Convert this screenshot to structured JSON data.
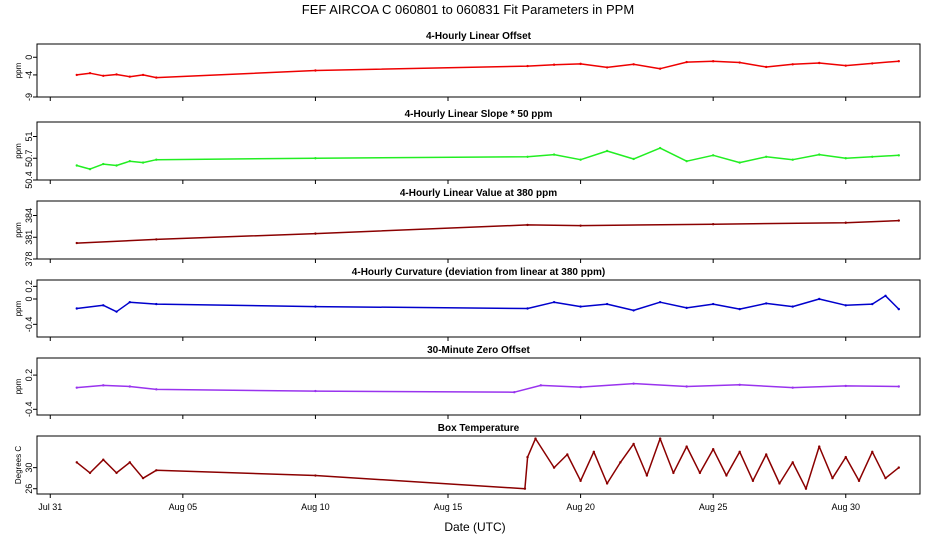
{
  "title": "FEF   AIRCOA C   060801 to 060831   Fit Parameters in PPM",
  "xlabel": "Date (UTC)",
  "x_ticks": [
    {
      "label": "Jul 31",
      "day": 0
    },
    {
      "label": "Aug 05",
      "day": 5
    },
    {
      "label": "Aug 10",
      "day": 10
    },
    {
      "label": "Aug 15",
      "day": 15
    },
    {
      "label": "Aug 20",
      "day": 20
    },
    {
      "label": "Aug 25",
      "day": 25
    },
    {
      "label": "Aug 30",
      "day": 30
    }
  ],
  "colors": {
    "red": "#ee0000",
    "green": "#22ee22",
    "darkred": "#8b0000",
    "blue": "#0000cc",
    "purple": "#9933ee"
  },
  "chart_data": [
    {
      "type": "line",
      "title": "4-Hourly Linear Offset",
      "ylabel": "ppm",
      "ylim": [
        -9,
        3
      ],
      "yticks": [
        -9,
        -4,
        0
      ],
      "color_key": "red",
      "x": [
        1.0,
        1.5,
        2.0,
        2.5,
        3.0,
        3.5,
        4.0,
        10.0,
        18.0,
        19.0,
        20.0,
        21.0,
        22.0,
        23.0,
        24.0,
        25.0,
        26.0,
        27.0,
        28.0,
        29.0,
        30.0,
        31.0,
        32.0
      ],
      "y": [
        -4.0,
        -3.6,
        -4.2,
        -3.9,
        -4.4,
        -4.0,
        -4.6,
        -3.0,
        -2.0,
        -1.7,
        -1.5,
        -2.3,
        -1.6,
        -2.6,
        -1.1,
        -0.9,
        -1.2,
        -2.2,
        -1.6,
        -1.3,
        -1.9,
        -1.4,
        -0.9
      ]
    },
    {
      "type": "line",
      "title": "4-Hourly Linear Slope * 50 ppm",
      "ylabel": "ppm",
      "ylim": [
        50.4,
        51.2
      ],
      "yticks": [
        50.4,
        50.7,
        51.0
      ],
      "color_key": "green",
      "x": [
        1.0,
        1.5,
        2.0,
        2.5,
        3.0,
        3.5,
        4.0,
        10.0,
        18.0,
        19.0,
        20.0,
        21.0,
        22.0,
        23.0,
        24.0,
        25.0,
        26.0,
        27.0,
        28.0,
        29.0,
        30.0,
        31.0,
        32.0
      ],
      "y": [
        50.6,
        50.55,
        50.62,
        50.6,
        50.66,
        50.64,
        50.68,
        50.7,
        50.72,
        50.75,
        50.68,
        50.8,
        50.69,
        50.84,
        50.66,
        50.74,
        50.64,
        50.72,
        50.68,
        50.75,
        50.7,
        50.72,
        50.74
      ]
    },
    {
      "type": "line",
      "title": "4-Hourly Linear Value at 380 ppm",
      "ylabel": "ppm",
      "ylim": [
        378,
        386
      ],
      "yticks": [
        378,
        381,
        384
      ],
      "color_key": "darkred",
      "x": [
        1.0,
        4.0,
        10.0,
        18.0,
        20.0,
        25.0,
        30.0,
        32.0
      ],
      "y": [
        380.2,
        380.7,
        381.5,
        382.7,
        382.6,
        382.8,
        383.0,
        383.3
      ]
    },
    {
      "type": "line",
      "title": "4-Hourly Curvature (deviation from linear at 380 ppm)",
      "ylabel": "ppm",
      "ylim": [
        -0.6,
        0.3
      ],
      "yticks": [
        -0.4,
        0.0,
        0.2
      ],
      "color_key": "blue",
      "x": [
        1.0,
        2.0,
        2.5,
        3.0,
        4.0,
        10.0,
        18.0,
        19.0,
        20.0,
        21.0,
        22.0,
        23.0,
        24.0,
        25.0,
        26.0,
        27.0,
        28.0,
        29.0,
        30.0,
        31.0,
        31.5,
        32.0
      ],
      "y": [
        -0.15,
        -0.1,
        -0.2,
        -0.05,
        -0.08,
        -0.12,
        -0.15,
        -0.05,
        -0.12,
        -0.08,
        -0.18,
        -0.05,
        -0.14,
        -0.08,
        -0.16,
        -0.07,
        -0.12,
        0.0,
        -0.1,
        -0.08,
        0.05,
        -0.16
      ]
    },
    {
      "type": "line",
      "title": "30-Minute Zero Offset",
      "ylabel": "ppm",
      "ylim": [
        -0.5,
        0.5
      ],
      "yticks": [
        -0.4,
        0.2
      ],
      "color_key": "purple",
      "x": [
        1.0,
        2.0,
        3.0,
        4.0,
        10.0,
        17.5,
        18.5,
        20.0,
        22.0,
        24.0,
        26.0,
        28.0,
        30.0,
        32.0
      ],
      "y": [
        -0.02,
        0.02,
        0.0,
        -0.05,
        -0.08,
        -0.1,
        0.02,
        -0.01,
        0.05,
        0.0,
        0.03,
        -0.02,
        0.01,
        0.0
      ]
    },
    {
      "type": "line",
      "title": "Box Temperature",
      "ylabel": "Degrees C",
      "ylim": [
        25,
        36
      ],
      "yticks": [
        26,
        30
      ],
      "color_key": "darkred",
      "x": [
        1.0,
        1.5,
        2.0,
        2.5,
        3.0,
        3.5,
        4.0,
        10.0,
        17.9,
        18.0,
        18.3,
        19.0,
        19.5,
        20.0,
        20.5,
        21.0,
        21.5,
        22.0,
        22.5,
        23.0,
        23.5,
        24.0,
        24.5,
        25.0,
        25.5,
        26.0,
        26.5,
        27.0,
        27.5,
        28.0,
        28.5,
        29.0,
        29.5,
        30.0,
        30.5,
        31.0,
        31.5,
        32.0
      ],
      "y": [
        31.0,
        29.0,
        31.5,
        29.0,
        31.0,
        28.0,
        29.5,
        28.5,
        26.0,
        32.0,
        35.5,
        30.0,
        32.5,
        27.5,
        33.0,
        27.0,
        31.0,
        34.5,
        28.5,
        35.5,
        29.0,
        34.0,
        29.0,
        33.5,
        28.5,
        33.0,
        27.5,
        32.5,
        27.0,
        31.0,
        26.0,
        34.0,
        28.0,
        32.0,
        27.5,
        33.0,
        28.0,
        30.0
      ]
    }
  ]
}
